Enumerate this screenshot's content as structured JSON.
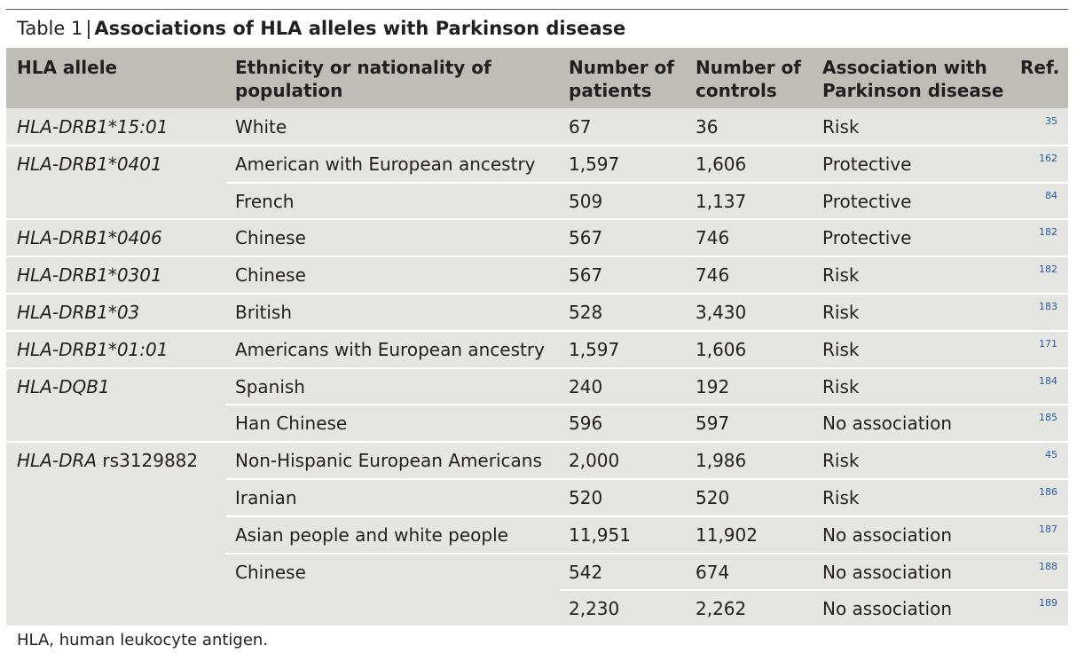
{
  "caption": {
    "label": "Table 1",
    "separator": "|",
    "title": "Associations of HLA alleles with Parkinson disease"
  },
  "headers": {
    "allele": "HLA allele",
    "population_1": "Ethnicity or nationality of",
    "population_2": "population",
    "patients_1": "Number of",
    "patients_2": "patients",
    "controls_1": "Number of",
    "controls_2": "controls",
    "association_1": "Association with",
    "association_2": "Parkinson disease",
    "ref": "Ref."
  },
  "rows": [
    {
      "allele": "HLA-DRB1*15:01",
      "allele_suffix": "",
      "population": "White",
      "patients": "67",
      "controls": "36",
      "association": "Risk",
      "ref": "35"
    },
    {
      "allele": "HLA-DRB1*0401",
      "allele_suffix": "",
      "population": "American with European ancestry",
      "patients": "1,597",
      "controls": "1,606",
      "association": "Protective",
      "ref": "162"
    },
    {
      "allele": "",
      "allele_suffix": "",
      "population": "French",
      "patients": "509",
      "controls": "1,137",
      "association": "Protective",
      "ref": "84"
    },
    {
      "allele": "HLA-DRB1*0406",
      "allele_suffix": "",
      "population": "Chinese",
      "patients": "567",
      "controls": "746",
      "association": "Protective",
      "ref": "182"
    },
    {
      "allele": "HLA-DRB1*0301",
      "allele_suffix": "",
      "population": "Chinese",
      "patients": "567",
      "controls": "746",
      "association": "Risk",
      "ref": "182"
    },
    {
      "allele": "HLA-DRB1*03",
      "allele_suffix": "",
      "population": "British",
      "patients": "528",
      "controls": "3,430",
      "association": "Risk",
      "ref": "183"
    },
    {
      "allele": "HLA-DRB1*01:01",
      "allele_suffix": "",
      "population": "Americans with European ancestry",
      "patients": "1,597",
      "controls": "1,606",
      "association": "Risk",
      "ref": "171"
    },
    {
      "allele": "HLA-DQB1",
      "allele_suffix": "",
      "population": "Spanish",
      "patients": "240",
      "controls": "192",
      "association": "Risk",
      "ref": "184"
    },
    {
      "allele": "",
      "allele_suffix": "",
      "population": "Han Chinese",
      "patients": "596",
      "controls": "597",
      "association": "No association",
      "ref": "185"
    },
    {
      "allele": "HLA-DRA",
      "allele_suffix": " rs3129882",
      "population": "Non-Hispanic European Americans",
      "patients": "2,000",
      "controls": "1,986",
      "association": "Risk",
      "ref": "45"
    },
    {
      "allele": "",
      "allele_suffix": "",
      "population": "Iranian",
      "patients": "520",
      "controls": "520",
      "association": "Risk",
      "ref": "186"
    },
    {
      "allele": "",
      "allele_suffix": "",
      "population": "Asian people and white people",
      "patients": "11,951",
      "controls": "11,902",
      "association": "No association",
      "ref": "187"
    },
    {
      "allele": "",
      "allele_suffix": "",
      "population": "Chinese",
      "patients": "542",
      "controls": "674",
      "association": "No association",
      "ref": "188"
    },
    {
      "allele": "",
      "allele_suffix": "",
      "population": "",
      "patients": "2,230",
      "controls": "2,262",
      "association": "No association",
      "ref": "189"
    }
  ],
  "footnote": "HLA, human leukocyte antigen."
}
